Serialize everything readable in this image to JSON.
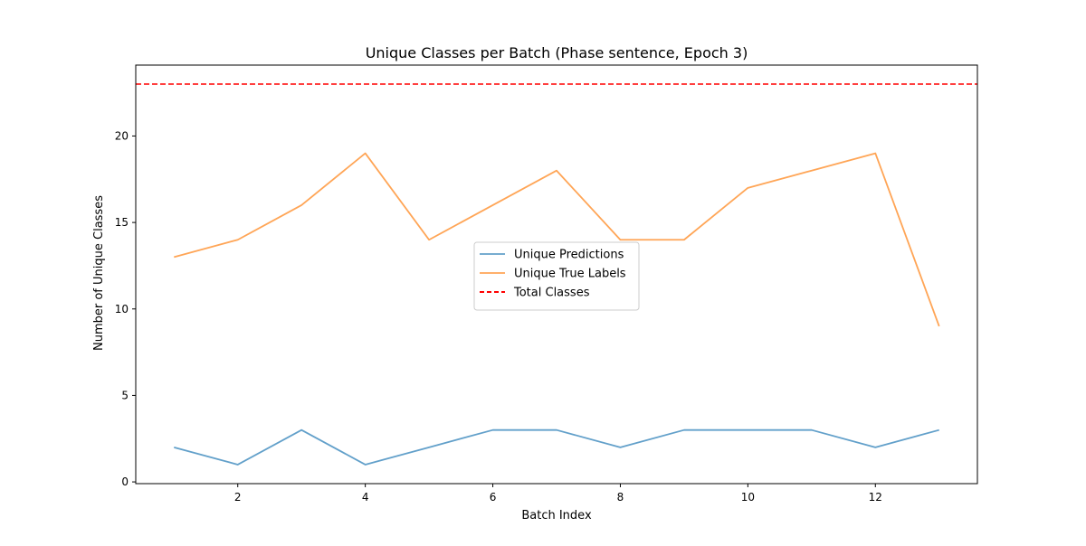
{
  "chart_data": {
    "type": "line",
    "title": "Unique Classes per Batch (Phase sentence, Epoch 3)",
    "xlabel": "Batch Index",
    "ylabel": "Number of Unique Classes",
    "xlim": [
      0.4,
      13.6
    ],
    "ylim": [
      -0.1,
      24.1
    ],
    "xticks": [
      2,
      4,
      6,
      8,
      10,
      12
    ],
    "yticks": [
      0,
      5,
      10,
      15,
      20
    ],
    "grid": false,
    "legend_position": "center",
    "x": [
      1,
      2,
      3,
      4,
      5,
      6,
      7,
      8,
      9,
      10,
      11,
      12,
      13
    ],
    "series": [
      {
        "name": "Unique Predictions",
        "color": "#1f77b4",
        "style": "solid",
        "values": [
          2,
          1,
          3,
          1,
          2,
          3,
          3,
          2,
          3,
          3,
          3,
          2,
          3
        ]
      },
      {
        "name": "Unique True Labels",
        "color": "#ff7f0e",
        "style": "solid",
        "values": [
          13,
          14,
          16,
          19,
          14,
          16,
          18,
          14,
          14,
          17,
          18,
          19,
          9
        ]
      }
    ],
    "hlines": [
      {
        "name": "Total Classes",
        "color": "#ff0000",
        "style": "dashed",
        "value": 23
      }
    ]
  }
}
